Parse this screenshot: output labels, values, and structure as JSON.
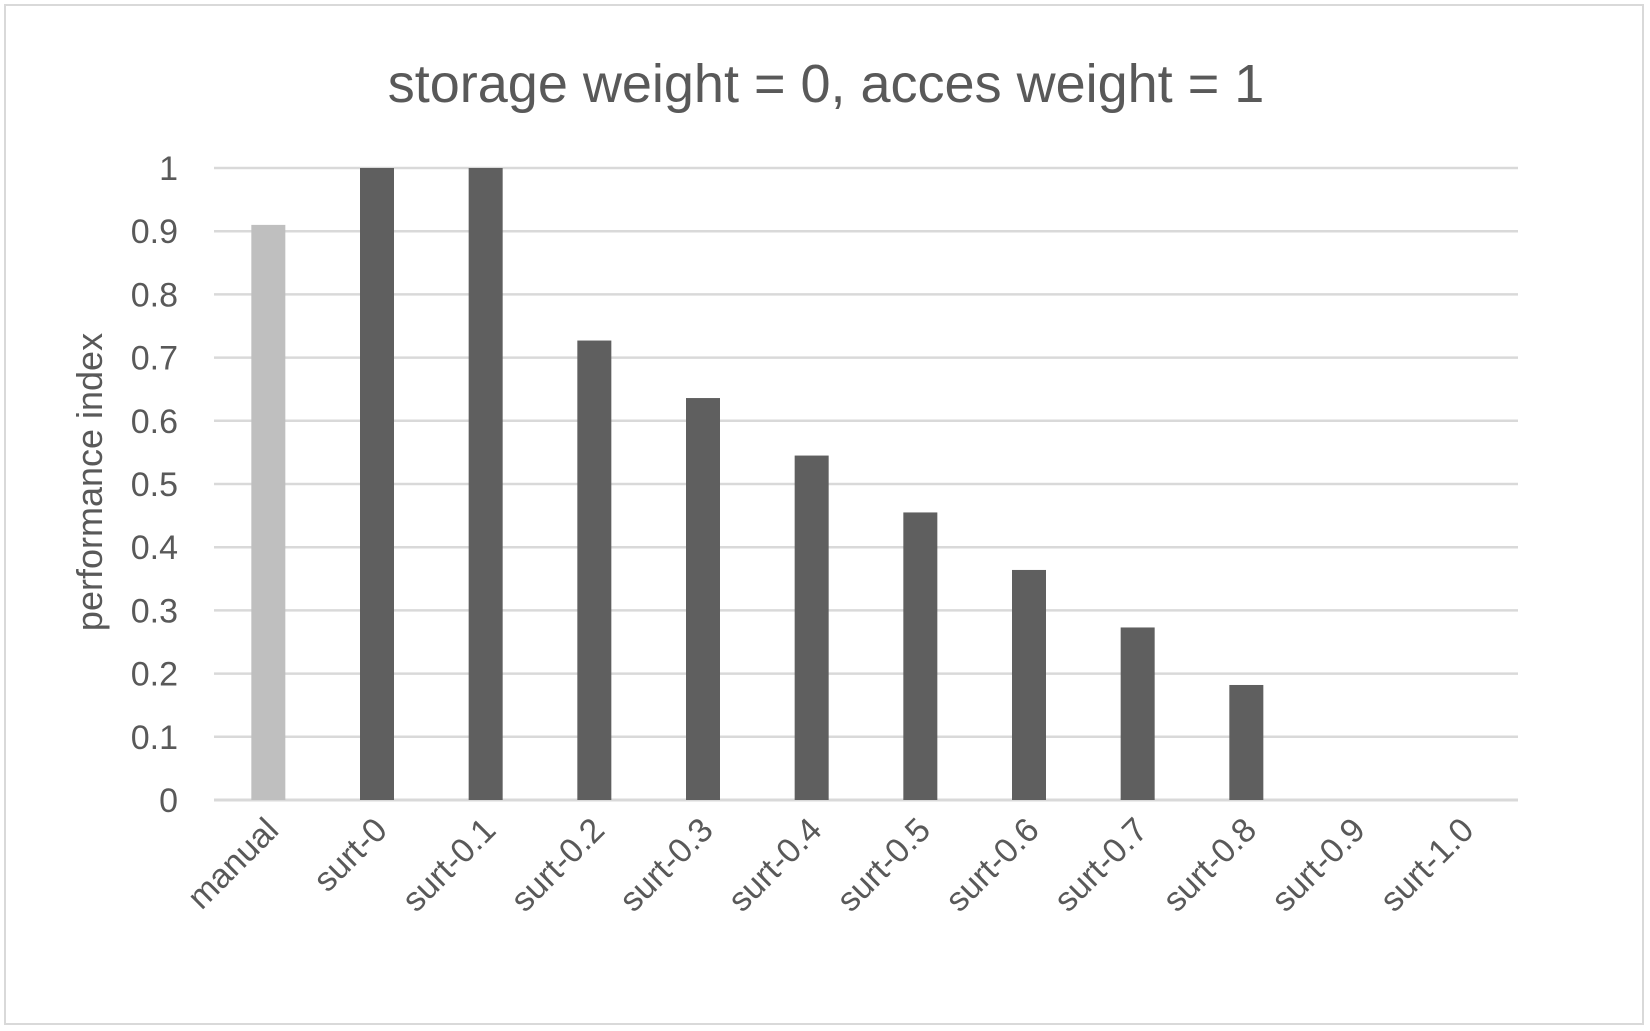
{
  "chart_data": {
    "type": "bar",
    "title": "storage weight = 0, acces weight = 1",
    "xlabel": "",
    "ylabel": "performance index",
    "categories": [
      "manual",
      "surt-0",
      "surt-0.1",
      "surt-0.2",
      "surt-0.3",
      "surt-0.4",
      "surt-0.5",
      "surt-0.6",
      "surt-0.7",
      "surt-0.8",
      "surt-0.9",
      "surt-1.0"
    ],
    "values": [
      0.91,
      1.0,
      1.0,
      0.727,
      0.636,
      0.545,
      0.455,
      0.364,
      0.273,
      0.182,
      0,
      0
    ],
    "ylim": [
      0,
      1
    ],
    "yticks": [
      "0",
      "0.1",
      "0.2",
      "0.3",
      "0.4",
      "0.5",
      "0.6",
      "0.7",
      "0.8",
      "0.9",
      "1"
    ],
    "ytick_values": [
      0,
      0.1,
      0.2,
      0.3,
      0.4,
      0.5,
      0.6,
      0.7,
      0.8,
      0.9,
      1.0
    ],
    "grid": true,
    "legend": "none",
    "colors": {
      "highlight": "#bfbfbf",
      "bar": "#5f5f5f"
    },
    "highlight_categories": [
      "manual"
    ]
  }
}
